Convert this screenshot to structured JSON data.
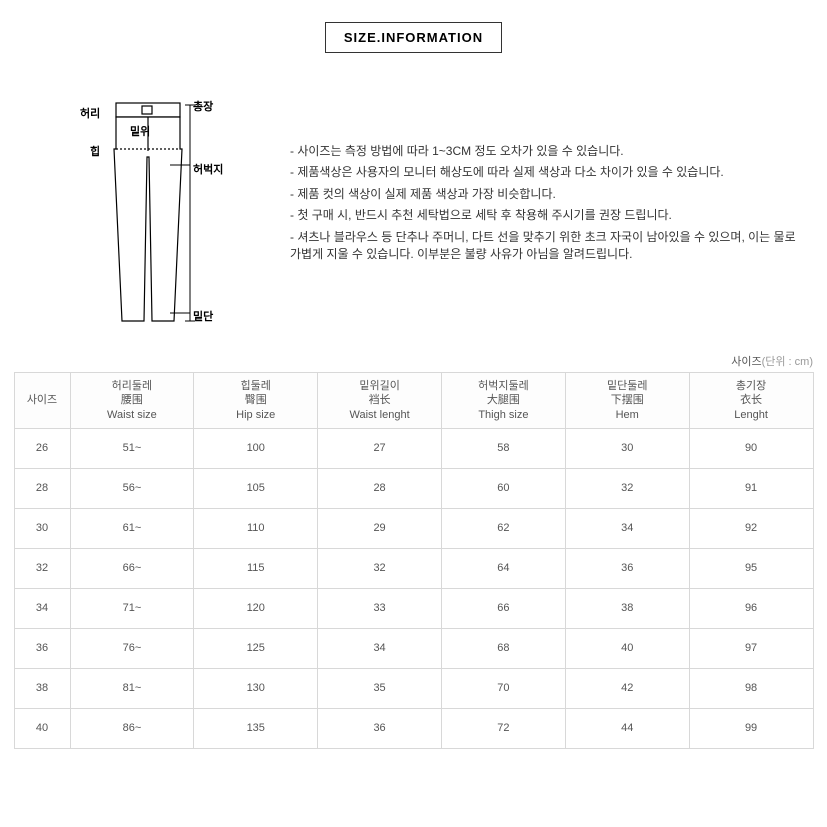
{
  "header": {
    "title": "SIZE.INFORMATION"
  },
  "diagram": {
    "labels": {
      "waist": "허리",
      "hip": "힙",
      "length": "총장",
      "rise": "밑위",
      "thigh": "허벅지",
      "hem": "밑단"
    }
  },
  "notes": {
    "line1": "- 사이즈는 측정 방법에 따라 1~3CM 정도 오차가 있을 수 있습니다.",
    "line2": "- 제품색상은 사용자의 모니터 해상도에 따라 실제 색상과 다소 차이가 있을 수 있습니다.",
    "line3": "- 제품 컷의 색상이 실제 제품 색상과 가장 비슷합니다.",
    "line4": "- 첫 구매 시, 반드시 추천 세탁법으로 세탁 후 착용해 주시기를 권장 드립니다.",
    "line5": "- 셔츠나 블라우스 등 단추나 주머니, 다트 선을 맞추기 위한 초크 자국이 남아있을 수 있으며, 이는 물로 가볍게 지울 수 있습니다. 이부분은 불량 사유가 아님을 알려드립니다."
  },
  "table": {
    "caption_prefix": "사이즈",
    "caption_unit": "(단위 : cm)",
    "columns": [
      {
        "kr": "사이즈",
        "cn": "",
        "en": ""
      },
      {
        "kr": "허리둘레",
        "cn": "腰围",
        "en": "Waist size"
      },
      {
        "kr": "힙둘레",
        "cn": "臀围",
        "en": "Hip size"
      },
      {
        "kr": "밑위길이",
        "cn": "裆长",
        "en": "Waist lenght"
      },
      {
        "kr": "허벅지둘레",
        "cn": "大腿围",
        "en": "Thigh size"
      },
      {
        "kr": "밑단둘레",
        "cn": "下摆围",
        "en": "Hem"
      },
      {
        "kr": "총기장",
        "cn": "衣长",
        "en": "Lenght"
      }
    ],
    "rows": [
      [
        "26",
        "51~",
        "100",
        "27",
        "58",
        "30",
        "90"
      ],
      [
        "28",
        "56~",
        "105",
        "28",
        "60",
        "32",
        "91"
      ],
      [
        "30",
        "61~",
        "110",
        "29",
        "62",
        "34",
        "92"
      ],
      [
        "32",
        "66~",
        "115",
        "32",
        "64",
        "36",
        "95"
      ],
      [
        "34",
        "71~",
        "120",
        "33",
        "66",
        "38",
        "96"
      ],
      [
        "36",
        "76~",
        "125",
        "34",
        "68",
        "40",
        "97"
      ],
      [
        "38",
        "81~",
        "130",
        "35",
        "70",
        "42",
        "98"
      ],
      [
        "40",
        "86~",
        "135",
        "36",
        "72",
        "44",
        "99"
      ]
    ]
  },
  "style": {
    "border_color": "#d8d8d8",
    "text_color": "#555555",
    "background": "#ffffff"
  }
}
